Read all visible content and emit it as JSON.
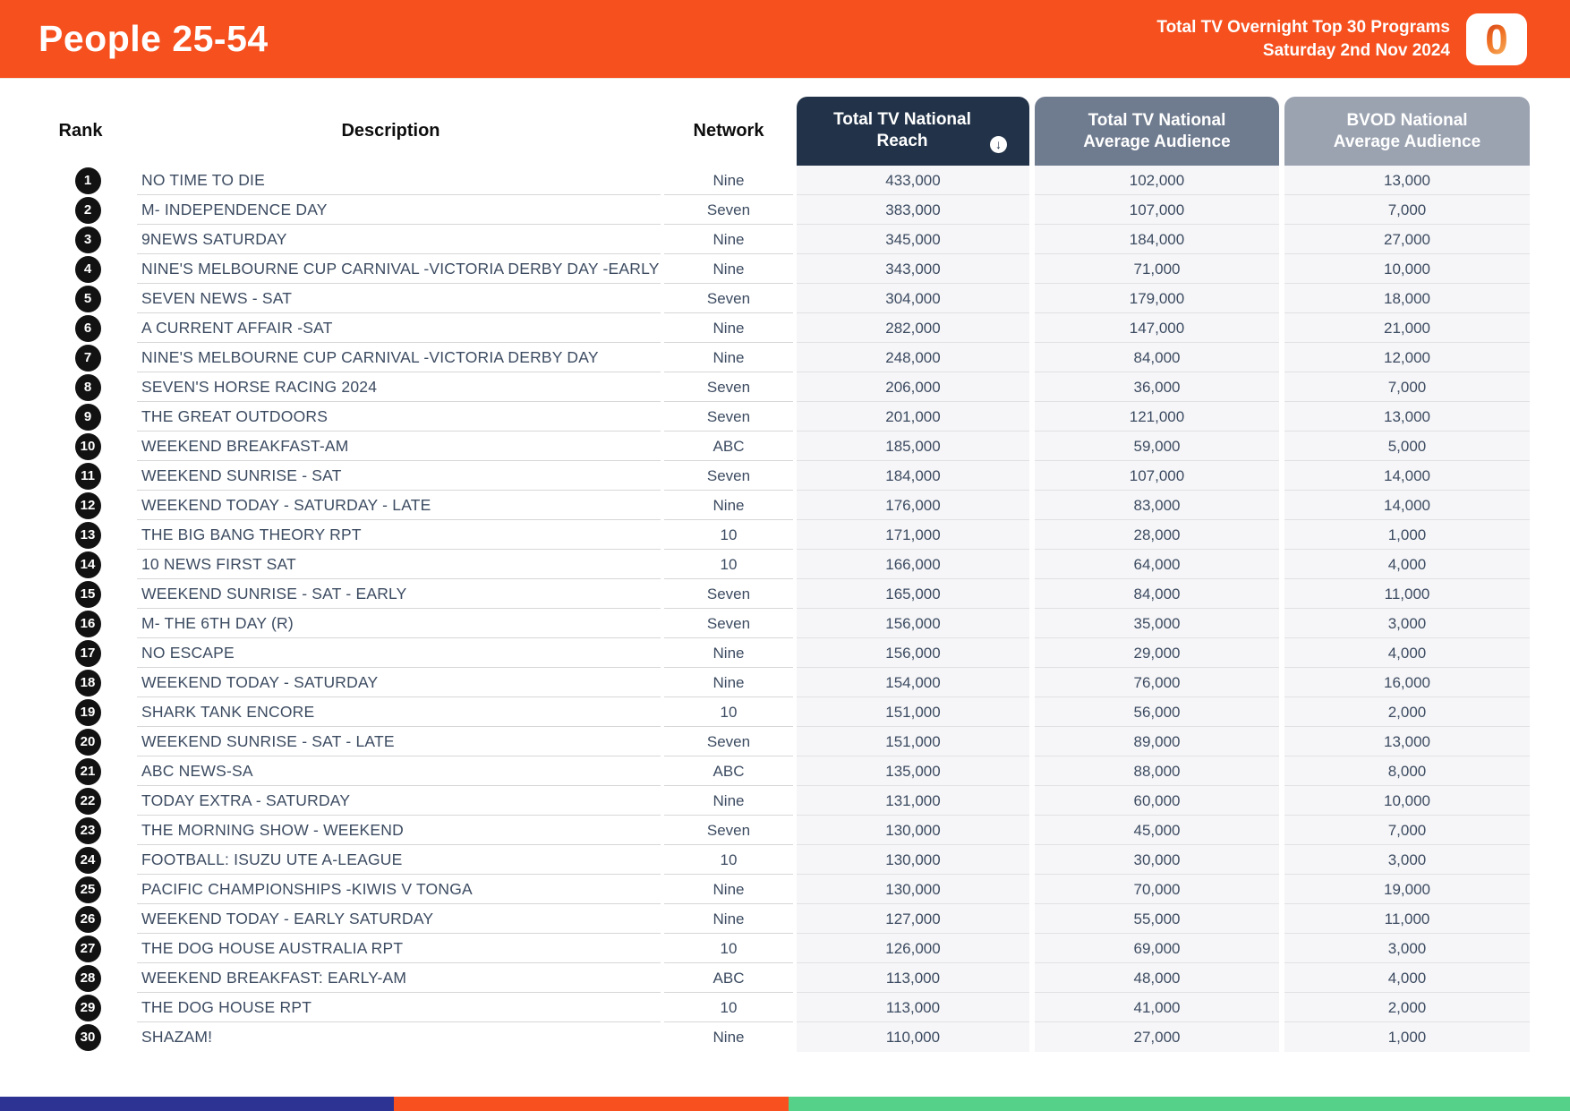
{
  "page": {
    "title": "People 25-54",
    "report_line1": "Total TV Overnight Top 30 Programs",
    "report_line2": "Saturday 2nd Nov 2024",
    "logo_character": "0",
    "colors": {
      "header_bg": "#F5501E",
      "reach_header_bg": "#223349",
      "avg_header_bg": "#6F7B8F",
      "bvod_header_bg": "#9BA3B1",
      "row_text": "#3C4B61",
      "rank_badge_bg": "#121212",
      "footer_blue": "#2D3392",
      "footer_orange": "#F9501F",
      "footer_green": "#55D189"
    }
  },
  "table": {
    "headers": {
      "rank": "Rank",
      "description": "Description",
      "network": "Network",
      "reach": "Total TV National Reach",
      "avg_audience": "Total TV National Average Audience",
      "bvod_audience": "BVOD National Average Audience"
    },
    "sort_icon": "arrow-down-circle",
    "sort_glyph": "↓",
    "rows": [
      {
        "rank": "1",
        "description": "NO TIME TO DIE",
        "network": "Nine",
        "reach": "433,000",
        "avg_audience": "102,000",
        "bvod_audience": "13,000"
      },
      {
        "rank": "2",
        "description": "M- INDEPENDENCE DAY",
        "network": "Seven",
        "reach": "383,000",
        "avg_audience": "107,000",
        "bvod_audience": "7,000"
      },
      {
        "rank": "3",
        "description": "9NEWS SATURDAY",
        "network": "Nine",
        "reach": "345,000",
        "avg_audience": "184,000",
        "bvod_audience": "27,000"
      },
      {
        "rank": "4",
        "description": "NINE'S MELBOURNE CUP CARNIVAL -VICTORIA DERBY DAY -EARLY",
        "network": "Nine",
        "reach": "343,000",
        "avg_audience": "71,000",
        "bvod_audience": "10,000"
      },
      {
        "rank": "5",
        "description": "SEVEN NEWS - SAT",
        "network": "Seven",
        "reach": "304,000",
        "avg_audience": "179,000",
        "bvod_audience": "18,000"
      },
      {
        "rank": "6",
        "description": "A CURRENT AFFAIR -SAT",
        "network": "Nine",
        "reach": "282,000",
        "avg_audience": "147,000",
        "bvod_audience": "21,000"
      },
      {
        "rank": "7",
        "description": "NINE'S MELBOURNE CUP CARNIVAL -VICTORIA DERBY DAY",
        "network": "Nine",
        "reach": "248,000",
        "avg_audience": "84,000",
        "bvod_audience": "12,000"
      },
      {
        "rank": "8",
        "description": "SEVEN'S HORSE RACING 2024",
        "network": "Seven",
        "reach": "206,000",
        "avg_audience": "36,000",
        "bvod_audience": "7,000"
      },
      {
        "rank": "9",
        "description": "THE GREAT OUTDOORS",
        "network": "Seven",
        "reach": "201,000",
        "avg_audience": "121,000",
        "bvod_audience": "13,000"
      },
      {
        "rank": "10",
        "description": "WEEKEND BREAKFAST-AM",
        "network": "ABC",
        "reach": "185,000",
        "avg_audience": "59,000",
        "bvod_audience": "5,000"
      },
      {
        "rank": "11",
        "description": "WEEKEND SUNRISE - SAT",
        "network": "Seven",
        "reach": "184,000",
        "avg_audience": "107,000",
        "bvod_audience": "14,000"
      },
      {
        "rank": "12",
        "description": "WEEKEND TODAY - SATURDAY - LATE",
        "network": "Nine",
        "reach": "176,000",
        "avg_audience": "83,000",
        "bvod_audience": "14,000"
      },
      {
        "rank": "13",
        "description": "THE BIG BANG THEORY RPT",
        "network": "10",
        "reach": "171,000",
        "avg_audience": "28,000",
        "bvod_audience": "1,000"
      },
      {
        "rank": "14",
        "description": "10 NEWS FIRST SAT",
        "network": "10",
        "reach": "166,000",
        "avg_audience": "64,000",
        "bvod_audience": "4,000"
      },
      {
        "rank": "15",
        "description": "WEEKEND SUNRISE - SAT - EARLY",
        "network": "Seven",
        "reach": "165,000",
        "avg_audience": "84,000",
        "bvod_audience": "11,000"
      },
      {
        "rank": "16",
        "description": "M- THE 6TH DAY (R)",
        "network": "Seven",
        "reach": "156,000",
        "avg_audience": "35,000",
        "bvod_audience": "3,000"
      },
      {
        "rank": "17",
        "description": "NO ESCAPE",
        "network": "Nine",
        "reach": "156,000",
        "avg_audience": "29,000",
        "bvod_audience": "4,000"
      },
      {
        "rank": "18",
        "description": "WEEKEND TODAY - SATURDAY",
        "network": "Nine",
        "reach": "154,000",
        "avg_audience": "76,000",
        "bvod_audience": "16,000"
      },
      {
        "rank": "19",
        "description": "SHARK TANK ENCORE",
        "network": "10",
        "reach": "151,000",
        "avg_audience": "56,000",
        "bvod_audience": "2,000"
      },
      {
        "rank": "20",
        "description": "WEEKEND SUNRISE - SAT - LATE",
        "network": "Seven",
        "reach": "151,000",
        "avg_audience": "89,000",
        "bvod_audience": "13,000"
      },
      {
        "rank": "21",
        "description": "ABC NEWS-SA",
        "network": "ABC",
        "reach": "135,000",
        "avg_audience": "88,000",
        "bvod_audience": "8,000"
      },
      {
        "rank": "22",
        "description": "TODAY EXTRA - SATURDAY",
        "network": "Nine",
        "reach": "131,000",
        "avg_audience": "60,000",
        "bvod_audience": "10,000"
      },
      {
        "rank": "23",
        "description": "THE MORNING SHOW - WEEKEND",
        "network": "Seven",
        "reach": "130,000",
        "avg_audience": "45,000",
        "bvod_audience": "7,000"
      },
      {
        "rank": "24",
        "description": "FOOTBALL: ISUZU UTE A-LEAGUE",
        "network": "10",
        "reach": "130,000",
        "avg_audience": "30,000",
        "bvod_audience": "3,000"
      },
      {
        "rank": "25",
        "description": "PACIFIC CHAMPIONSHIPS -KIWIS V TONGA",
        "network": "Nine",
        "reach": "130,000",
        "avg_audience": "70,000",
        "bvod_audience": "19,000"
      },
      {
        "rank": "26",
        "description": "WEEKEND TODAY - EARLY SATURDAY",
        "network": "Nine",
        "reach": "127,000",
        "avg_audience": "55,000",
        "bvod_audience": "11,000"
      },
      {
        "rank": "27",
        "description": "THE DOG HOUSE AUSTRALIA RPT",
        "network": "10",
        "reach": "126,000",
        "avg_audience": "69,000",
        "bvod_audience": "3,000"
      },
      {
        "rank": "28",
        "description": "WEEKEND BREAKFAST: EARLY-AM",
        "network": "ABC",
        "reach": "113,000",
        "avg_audience": "48,000",
        "bvod_audience": "4,000"
      },
      {
        "rank": "29",
        "description": "THE DOG HOUSE RPT",
        "network": "10",
        "reach": "113,000",
        "avg_audience": "41,000",
        "bvod_audience": "2,000"
      },
      {
        "rank": "30",
        "description": "SHAZAM!",
        "network": "Nine",
        "reach": "110,000",
        "avg_audience": "27,000",
        "bvod_audience": "1,000"
      }
    ]
  }
}
